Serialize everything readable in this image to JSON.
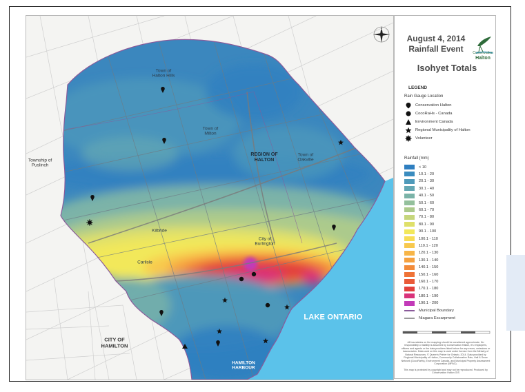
{
  "title": {
    "line1": "August 4, 2014",
    "line2": "Rainfall Event",
    "subtitle": "Isohyet Totals"
  },
  "logo": {
    "text_line1": "Conservation",
    "text_line2": "Halton"
  },
  "legend": {
    "title": "LEGEND",
    "gauge_title": "Rain Gauge Location",
    "gauges": [
      {
        "label": "Conservation Halton",
        "icon": "marker-icon"
      },
      {
        "label": "CocoRaHs - Canada",
        "icon": "circle-icon"
      },
      {
        "label": "Environment Canada",
        "icon": "triangle-icon"
      },
      {
        "label": "Regional Municipality of Halton",
        "icon": "star-icon"
      },
      {
        "label": "Volunteer",
        "icon": "sunburst-icon"
      }
    ],
    "rain_title": "Rainfall (mm)",
    "rainfall_classes": [
      {
        "label": "< 10",
        "color": "#2f7fc0"
      },
      {
        "label": "10.1 - 20",
        "color": "#3a8cbf"
      },
      {
        "label": "20.1 - 30",
        "color": "#4f9aba"
      },
      {
        "label": "30.1 - 40",
        "color": "#64a7b3"
      },
      {
        "label": "40.1 - 50",
        "color": "#7bb3a8"
      },
      {
        "label": "50.1 - 60",
        "color": "#94c09c"
      },
      {
        "label": "60.1 - 70",
        "color": "#acca8c"
      },
      {
        "label": "70.1 - 80",
        "color": "#c6d67c"
      },
      {
        "label": "80.1 - 90",
        "color": "#dfe06a"
      },
      {
        "label": "90.1 - 100",
        "color": "#f2e85a"
      },
      {
        "label": "100.1 - 110",
        "color": "#f7dd55"
      },
      {
        "label": "110.1 - 120",
        "color": "#f8c94e"
      },
      {
        "label": "120.1 - 130",
        "color": "#f7b547"
      },
      {
        "label": "130.1 - 140",
        "color": "#f5a140"
      },
      {
        "label": "140.1 - 150",
        "color": "#f28b3a"
      },
      {
        "label": "150.1 - 160",
        "color": "#ef7337"
      },
      {
        "label": "160.1 - 170",
        "color": "#ea5a38"
      },
      {
        "label": "170.1 - 180",
        "color": "#e2413d"
      },
      {
        "label": "180.1 - 190",
        "color": "#d9337a"
      },
      {
        "label": "190.1 - 200",
        "color": "#c23ab8"
      }
    ],
    "lines": [
      {
        "label": "Municipal Boundary",
        "color": "#8a5a9a"
      },
      {
        "label": "Niagara Escarpment",
        "color": "#9a9a9a"
      }
    ]
  },
  "disclaimer": "All boundaries on the mapping should be considered approximate. No responsibility or liability is assumed by Conservation Halton, it's employees, officers and agents or the data providers listed below for any errors, omissions or inaccuracies. Data used on this map is used under license from the Ministry of Natural Resources. © Queen's Printer for Ontario, 2014. Data provided by Regional Municipality of Halton, Community Collaborative Rain, Hail & Snow Network (CocoRaHs), Environment Canada, and Municipal Property Assessment Corporation (MPAC).",
  "footer_note": "This map is protected by copyright and may not be reproduced. Produced by Conservation Halton GIS",
  "map": {
    "labels": {
      "halton_hills": "Town of\nHalton Hills",
      "milton": "Town of\nMilton",
      "region": "REGION OF\nHALTON",
      "oakville": "Town of\nOakville",
      "puslinch": "Township of\nPuslinch",
      "burlington": "City of\nBurlington",
      "lake": "LAKE ONTARIO",
      "hamilton": "CITY OF\nHAMILTON",
      "harbour": "HAMILTON\nHARBOUR",
      "kilbride": "Kilbride",
      "carlisle": "Carlisle"
    }
  }
}
